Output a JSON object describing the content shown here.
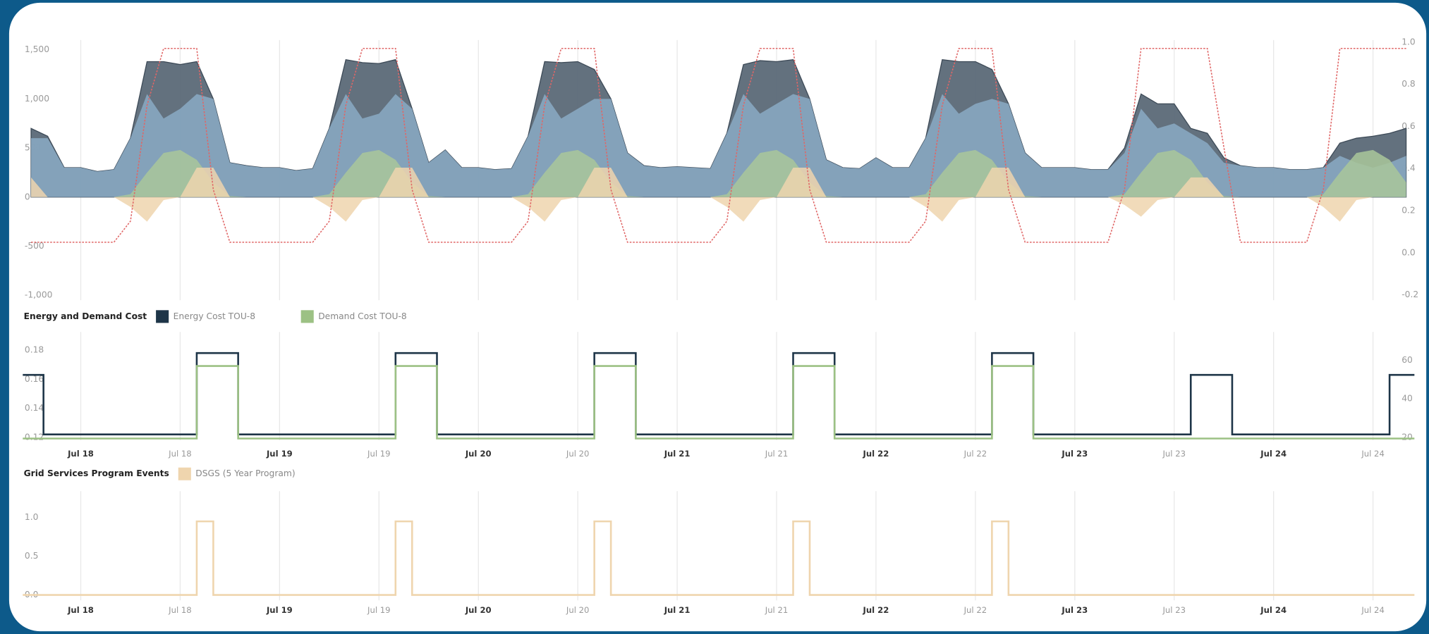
{
  "chart_data": [
    {
      "type": "area",
      "x": [
        -6,
        -4,
        -2,
        0,
        2,
        4,
        6,
        8,
        10,
        12,
        14,
        16,
        18,
        20,
        22,
        24,
        26,
        28,
        30,
        32,
        34,
        36,
        38,
        40,
        42,
        44,
        46,
        48,
        50,
        52,
        54,
        56,
        58,
        60,
        62,
        64,
        66,
        68,
        70,
        72,
        74,
        76,
        78,
        80,
        82,
        84,
        86,
        88,
        90,
        92,
        94,
        96,
        98,
        100,
        102,
        104,
        106,
        108,
        110,
        112,
        114,
        116,
        118,
        120,
        122,
        124,
        126,
        128,
        130,
        132,
        134,
        136,
        138,
        140,
        142,
        144,
        146,
        148,
        150,
        152,
        154,
        156,
        158,
        160
      ],
      "xlim": [
        -7,
        161
      ],
      "ylim": [
        -1050,
        1600
      ],
      "yticks": [
        {
          "value": -1000,
          "label": "-1,000"
        },
        -500,
        0,
        500,
        {
          "value": 1000,
          "label": "1,000"
        },
        {
          "value": 1500,
          "label": "1,500"
        }
      ],
      "y2lim": [
        -0.225,
        1.01
      ],
      "y2ticks": [
        {
          "value": -0.2,
          "label": "-0.2"
        },
        {
          "value": 0,
          "label": "0.0"
        },
        0.2,
        0.4,
        0.6,
        0.8,
        {
          "value": 1,
          "label": "1.0"
        }
      ],
      "series": [
        {
          "color": "#5b6977",
          "values": [
            700,
            620,
            300,
            300,
            260,
            280,
            600,
            1380,
            1380,
            1350,
            1380,
            1000,
            350,
            320,
            300,
            300,
            270,
            290,
            700,
            1400,
            1370,
            1360,
            1400,
            900,
            350,
            480,
            300,
            300,
            280,
            290,
            620,
            1380,
            1370,
            1380,
            1300,
            1000,
            450,
            320,
            300,
            310,
            300,
            290,
            650,
            1350,
            1390,
            1380,
            1400,
            1000,
            380,
            300,
            290,
            400,
            300,
            300,
            600,
            1400,
            1380,
            1380,
            1300,
            950,
            450,
            300,
            300,
            300,
            280,
            280,
            500,
            1050,
            950,
            950,
            700,
            650,
            400,
            320,
            300,
            300,
            280,
            280,
            300,
            550,
            600,
            620,
            650,
            700
          ]
        },
        {
          "color": "#8aaac4",
          "values": [
            600,
            600,
            300,
            300,
            260,
            280,
            600,
            1050,
            800,
            900,
            1050,
            1000,
            350,
            320,
            300,
            300,
            270,
            290,
            700,
            1050,
            800,
            850,
            1050,
            900,
            350,
            480,
            300,
            300,
            280,
            290,
            620,
            1050,
            800,
            900,
            1000,
            1000,
            450,
            320,
            300,
            310,
            300,
            290,
            650,
            1050,
            850,
            950,
            1050,
            1000,
            380,
            300,
            290,
            400,
            300,
            300,
            600,
            1050,
            850,
            950,
            1000,
            950,
            450,
            300,
            300,
            300,
            280,
            280,
            450,
            900,
            700,
            750,
            650,
            550,
            350,
            320,
            300,
            300,
            280,
            280,
            300,
            420,
            350,
            300,
            350,
            420
          ]
        },
        {
          "color": "#a9c79a",
          "values": [
            0,
            0,
            0,
            0,
            0,
            0,
            30,
            250,
            450,
            480,
            380,
            150,
            10,
            0,
            0,
            0,
            0,
            0,
            30,
            250,
            450,
            480,
            380,
            150,
            10,
            0,
            0,
            0,
            0,
            0,
            30,
            250,
            450,
            480,
            380,
            150,
            10,
            0,
            0,
            0,
            0,
            0,
            30,
            250,
            450,
            480,
            380,
            150,
            10,
            0,
            0,
            0,
            0,
            0,
            30,
            250,
            450,
            480,
            380,
            150,
            10,
            0,
            0,
            0,
            0,
            0,
            30,
            250,
            450,
            480,
            380,
            150,
            10,
            0,
            0,
            0,
            0,
            0,
            30,
            250,
            450,
            480,
            380,
            150
          ]
        },
        {
          "color": "#efd5ae",
          "values": [
            200,
            0,
            0,
            0,
            0,
            0,
            -100,
            -250,
            -30,
            0,
            300,
            300,
            0,
            0,
            0,
            0,
            0,
            0,
            -100,
            -250,
            -30,
            0,
            300,
            300,
            0,
            0,
            0,
            0,
            0,
            0,
            -100,
            -250,
            -30,
            0,
            300,
            300,
            0,
            0,
            0,
            0,
            0,
            0,
            -100,
            -250,
            -30,
            0,
            300,
            300,
            0,
            0,
            0,
            0,
            0,
            0,
            -100,
            -250,
            -30,
            0,
            300,
            300,
            0,
            0,
            0,
            0,
            0,
            0,
            -80,
            -200,
            -30,
            0,
            200,
            200,
            0,
            0,
            0,
            0,
            0,
            0,
            -100,
            -250,
            -30,
            0,
            0,
            0
          ]
        },
        {
          "type": "line",
          "axis": "y2",
          "color": "#e06666",
          "values": [
            0.05,
            0.05,
            0.05,
            0.05,
            0.05,
            0.05,
            0.15,
            0.7,
            0.97,
            0.97,
            0.97,
            0.3,
            0.05,
            0.05,
            0.05,
            0.05,
            0.05,
            0.05,
            0.15,
            0.7,
            0.97,
            0.97,
            0.97,
            0.3,
            0.05,
            0.05,
            0.05,
            0.05,
            0.05,
            0.05,
            0.15,
            0.7,
            0.97,
            0.97,
            0.97,
            0.3,
            0.05,
            0.05,
            0.05,
            0.05,
            0.05,
            0.05,
            0.15,
            0.7,
            0.97,
            0.97,
            0.97,
            0.3,
            0.05,
            0.05,
            0.05,
            0.05,
            0.05,
            0.05,
            0.15,
            0.7,
            0.97,
            0.97,
            0.97,
            0.3,
            0.05,
            0.05,
            0.05,
            0.05,
            0.05,
            0.05,
            0.3,
            0.97,
            0.97,
            0.97,
            0.97,
            0.97,
            0.5,
            0.05,
            0.05,
            0.05,
            0.05,
            0.05,
            0.3,
            0.97,
            0.97,
            0.97,
            0.97,
            0.97
          ]
        }
      ]
    },
    {
      "type": "line",
      "step": "after",
      "title": "Energy and Demand Cost",
      "x": [
        -7,
        -4.5,
        14,
        19,
        38,
        43,
        62,
        67,
        86,
        91,
        110,
        115,
        134,
        139,
        158,
        161
      ],
      "xlim": [
        -7,
        161
      ],
      "xticks": [
        {
          "value": 0,
          "label": "Jul 18"
        },
        {
          "value": 12,
          "label": "Jul 18"
        },
        {
          "value": 24,
          "label": "Jul 19"
        },
        {
          "value": 36,
          "label": "Jul 19"
        },
        {
          "value": 48,
          "label": "Jul 20"
        },
        {
          "value": 60,
          "label": "Jul 20"
        },
        {
          "value": 72,
          "label": "Jul 21"
        },
        {
          "value": 84,
          "label": "Jul 21"
        },
        {
          "value": 96,
          "label": "Jul 22"
        },
        {
          "value": 108,
          "label": "Jul 22"
        },
        {
          "value": 120,
          "label": "Jul 23"
        },
        {
          "value": 132,
          "label": "Jul 23"
        },
        {
          "value": 144,
          "label": "Jul 24"
        },
        {
          "value": 156,
          "label": "Jul 24"
        }
      ],
      "ylim": [
        0.118,
        0.1925
      ],
      "yticks": [
        0.12,
        0.14,
        0.16,
        0.18
      ],
      "y2lim": [
        18.6,
        74.6
      ],
      "y2ticks": [
        20,
        40,
        60
      ],
      "series": [
        {
          "name": "Energy Cost TOU-8",
          "color": "#1e3548",
          "values": [
            0.163,
            0.122,
            0.178,
            0.122,
            0.178,
            0.122,
            0.178,
            0.122,
            0.178,
            0.122,
            0.178,
            0.122,
            0.163,
            0.122,
            0.163,
            0.163
          ]
        },
        {
          "name": "Demand Cost TOU-8",
          "axis": "y2",
          "color": "#9cc184",
          "values": [
            19.5,
            19.5,
            57,
            19.5,
            57,
            19.5,
            57,
            19.5,
            57,
            19.5,
            57,
            19.5,
            19.5,
            19.5,
            19.5,
            19.5
          ]
        }
      ]
    },
    {
      "type": "line",
      "step": "after",
      "title": "Grid Services Program Events",
      "x": [
        -7,
        14,
        16,
        38,
        40,
        62,
        64,
        86,
        88,
        110,
        112,
        161
      ],
      "xlim": [
        -7,
        161
      ],
      "xticks": [
        {
          "value": 0,
          "label": "Jul 18"
        },
        {
          "value": 12,
          "label": "Jul 18"
        },
        {
          "value": 24,
          "label": "Jul 19"
        },
        {
          "value": 36,
          "label": "Jul 19"
        },
        {
          "value": 48,
          "label": "Jul 20"
        },
        {
          "value": 60,
          "label": "Jul 20"
        },
        {
          "value": 72,
          "label": "Jul 21"
        },
        {
          "value": 84,
          "label": "Jul 21"
        },
        {
          "value": 96,
          "label": "Jul 22"
        },
        {
          "value": 108,
          "label": "Jul 22"
        },
        {
          "value": 120,
          "label": "Jul 23"
        },
        {
          "value": 132,
          "label": "Jul 23"
        },
        {
          "value": 144,
          "label": "Jul 24"
        },
        {
          "value": 156,
          "label": "Jul 24"
        }
      ],
      "ylim": [
        -0.07,
        1.34
      ],
      "yticks": [
        {
          "value": 0,
          "label": "0.0"
        },
        {
          "value": 0.5,
          "label": "0.5"
        },
        {
          "value": 1,
          "label": "1.0"
        }
      ],
      "series": [
        {
          "name": "DSGS (5 Year Program)",
          "color": "#efd5ae",
          "values": [
            0,
            0.95,
            0,
            0.95,
            0,
            0.95,
            0,
            0.95,
            0,
            0.95,
            0,
            0
          ]
        }
      ]
    }
  ]
}
